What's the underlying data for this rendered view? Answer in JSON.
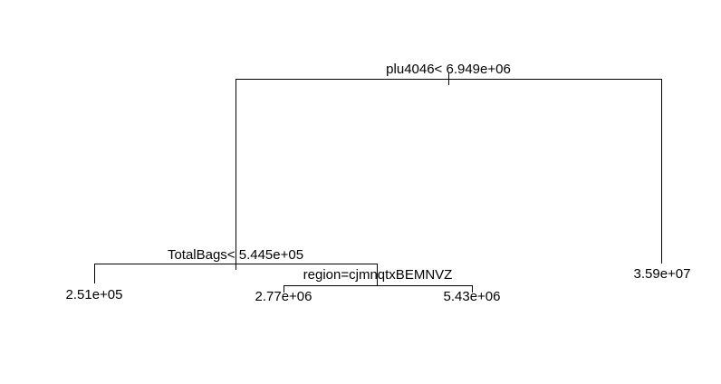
{
  "tree": {
    "root": {
      "split_label": "plu4046< 6.949e+06",
      "left": {
        "split_label": "TotalBags< 5.445e+05",
        "left": {
          "leaf_label": "2.51e+05"
        },
        "right": {
          "split_label": "region=cjmnqtxBEMNVZ",
          "left": {
            "leaf_label": "2.77e+06"
          },
          "right": {
            "leaf_label": "5.43e+06"
          }
        }
      },
      "right": {
        "leaf_label": "3.59e+07"
      }
    }
  }
}
